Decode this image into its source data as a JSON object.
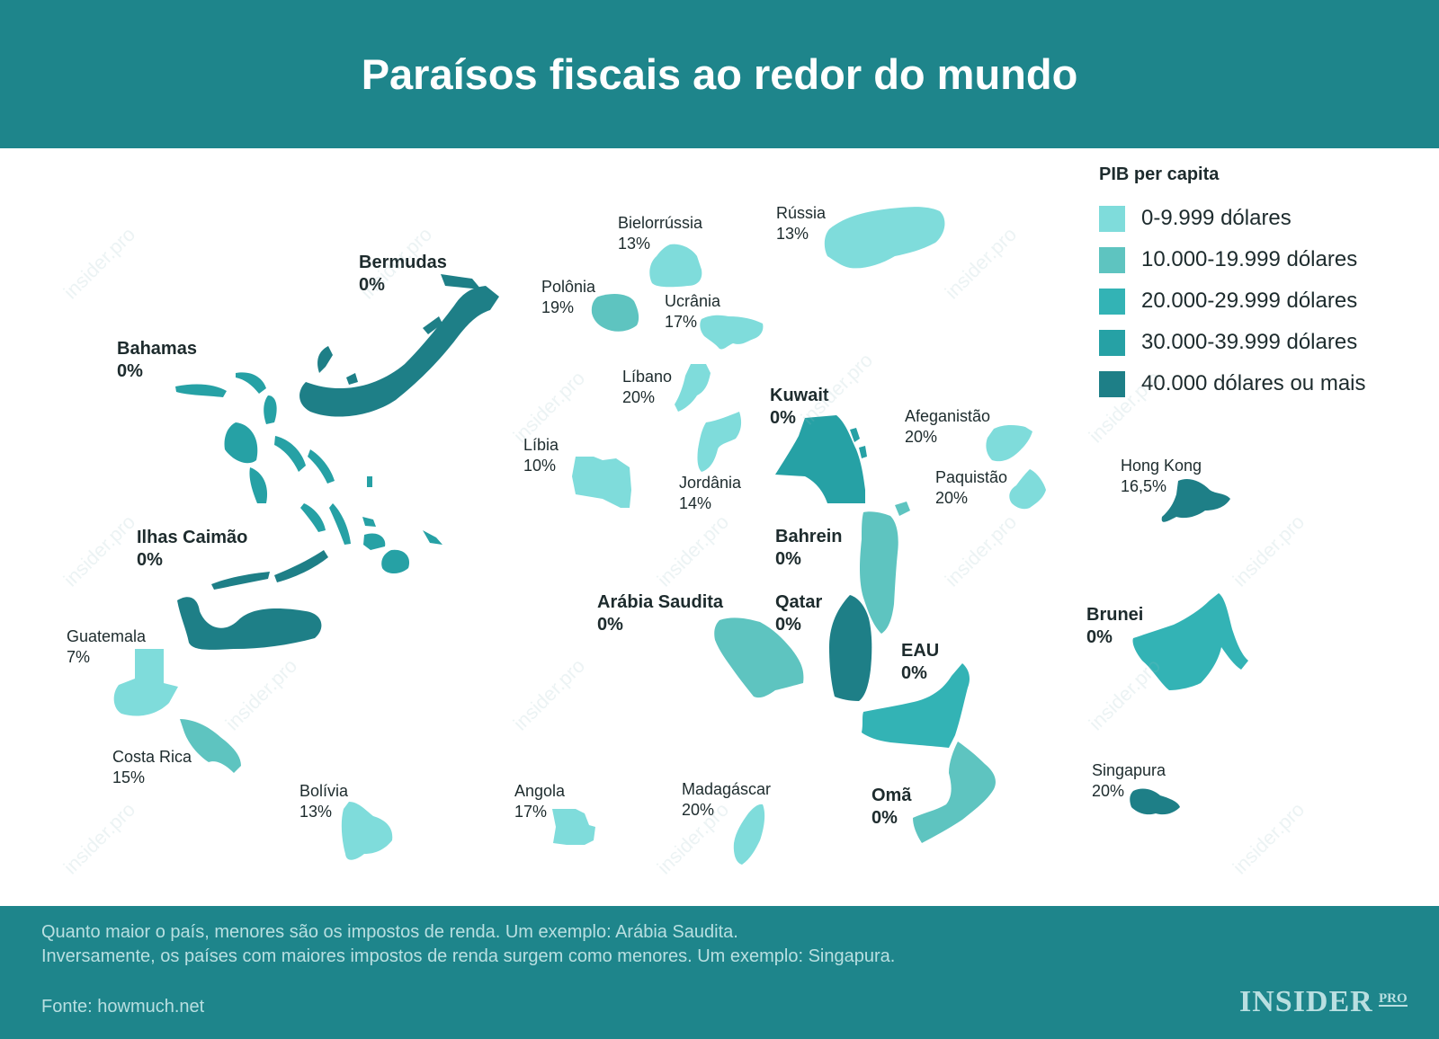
{
  "title": "Paraísos fiscais ao redor do mundo",
  "legend": {
    "title": "PIB per capita",
    "items": [
      {
        "label": "0-9.999 dólares",
        "color": "#7fdcdb"
      },
      {
        "label": "10.000-19.999 dólares",
        "color": "#5ec4c0"
      },
      {
        "label": "20.000-29.999 dólares",
        "color": "#33b3b5"
      },
      {
        "label": "30.000-39.999 dólares",
        "color": "#26a1a5"
      },
      {
        "label": "40.000 dólares ou mais",
        "color": "#1e7f87"
      }
    ]
  },
  "countries": [
    {
      "name": "Bermudas",
      "tax": "0%",
      "tier": 4,
      "bold": true
    },
    {
      "name": "Bahamas",
      "tax": "0%",
      "tier": 3,
      "bold": true
    },
    {
      "name": "Ilhas Caimão",
      "tax": "0%",
      "tier": 4,
      "bold": true
    },
    {
      "name": "Guatemala",
      "tax": "7%",
      "tier": 0,
      "bold": false
    },
    {
      "name": "Costa Rica",
      "tax": "15%",
      "tier": 1,
      "bold": false
    },
    {
      "name": "Bolívia",
      "tax": "13%",
      "tier": 0,
      "bold": false
    },
    {
      "name": "Bielorrússia",
      "tax": "13%",
      "tier": 0,
      "bold": false
    },
    {
      "name": "Rússia",
      "tax": "13%",
      "tier": 0,
      "bold": false
    },
    {
      "name": "Polônia",
      "tax": "19%",
      "tier": 1,
      "bold": false
    },
    {
      "name": "Ucrânia",
      "tax": "17%",
      "tier": 0,
      "bold": false
    },
    {
      "name": "Líbano",
      "tax": "20%",
      "tier": 0,
      "bold": false
    },
    {
      "name": "Líbia",
      "tax": "10%",
      "tier": 0,
      "bold": false
    },
    {
      "name": "Jordânia",
      "tax": "14%",
      "tier": 0,
      "bold": false
    },
    {
      "name": "Kuwait",
      "tax": "0%",
      "tier": 3,
      "bold": true
    },
    {
      "name": "Afeganistão",
      "tax": "20%",
      "tier": 0,
      "bold": false
    },
    {
      "name": "Paquistão",
      "tax": "20%",
      "tier": 0,
      "bold": false
    },
    {
      "name": "Hong Kong",
      "tax": "16,5%",
      "tier": 4,
      "bold": false
    },
    {
      "name": "Bahrein",
      "tax": "0%",
      "tier": 1,
      "bold": true
    },
    {
      "name": "Arábia Saudita",
      "tax": "0%",
      "tier": 1,
      "bold": true
    },
    {
      "name": "Qatar",
      "tax": "0%",
      "tier": 4,
      "bold": true
    },
    {
      "name": "EAU",
      "tax": "0%",
      "tier": 2,
      "bold": true
    },
    {
      "name": "Brunei",
      "tax": "0%",
      "tier": 2,
      "bold": true
    },
    {
      "name": "Omã",
      "tax": "0%",
      "tier": 1,
      "bold": true
    },
    {
      "name": "Singapura",
      "tax": "20%",
      "tier": 4,
      "bold": false
    },
    {
      "name": "Angola",
      "tax": "17%",
      "tier": 0,
      "bold": false
    },
    {
      "name": "Madagáscar",
      "tax": "20%",
      "tier": 0,
      "bold": false
    }
  ],
  "footer": {
    "note_line1": "Quanto maior o país, menores são os impostos de renda. Um exemplo: Arábia Saudita.",
    "note_line2": "Inversamente, os países com maiores impostos de renda surgem como menores. Um exemplo: Singapura.",
    "source": "Fonte: howmuch.net"
  },
  "logo": {
    "main": "INSIDER",
    "sub": "PRO"
  },
  "watermark": "insider.pro"
}
